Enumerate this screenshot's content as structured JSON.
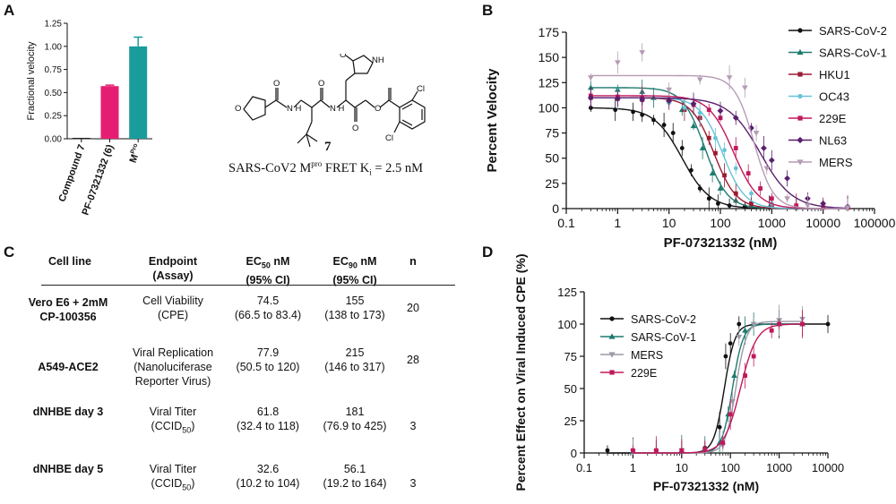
{
  "panels": {
    "a": "A",
    "b": "B",
    "c": "C",
    "d": "D"
  },
  "panelA": {
    "chart_data": {
      "type": "bar",
      "categories": [
        "Compound 7",
        "PF-07321332 (6)",
        "MPro"
      ],
      "category_labels": [
        {
          "main": "Compound 7",
          "sup": ""
        },
        {
          "main": "PF-07321332 (6)",
          "sup": ""
        },
        {
          "main": "M",
          "sup": "Pro"
        }
      ],
      "values": [
        0.01,
        0.57,
        1.0
      ],
      "errors": [
        0.0,
        0.01,
        0.1
      ],
      "colors": [
        "#222222",
        "#e61e73",
        "#1a9c9c"
      ],
      "ylabel": "Fractional velocity",
      "ylim": [
        0,
        1.25
      ],
      "yticks": [
        "0.00",
        "0.25",
        "0.50",
        "0.75",
        "1.00",
        "1.25"
      ]
    }
  },
  "compound": {
    "number": "7",
    "caption_pre": "SARS-CoV2 M",
    "caption_sup": "pro",
    "caption_mid": " FRET K",
    "caption_sub": "i",
    "caption_post": " = 2.5 nM",
    "atoms": {
      "o1": "O",
      "o2": "O",
      "o3": "O",
      "o4": "O",
      "o5": "O",
      "o6": "O",
      "nh1": "NH",
      "nh2": "N\nH",
      "nh3": "N\nH",
      "cl1": "Cl",
      "cl2": "Cl"
    }
  },
  "panelB": {
    "chart_data": {
      "type": "line",
      "xscale": "log",
      "xlabel": "PF-07321332 (nM)",
      "ylabel": "Percent Velocity",
      "xlim": [
        0.1,
        100000
      ],
      "ylim": [
        0,
        175
      ],
      "xticks": [
        "0.1",
        "1",
        "10",
        "100",
        "1000",
        "10000",
        "100000"
      ],
      "yticks": [
        "0",
        "25",
        "50",
        "75",
        "100",
        "125",
        "150",
        "175"
      ],
      "series": [
        {
          "name": "SARS-CoV-2",
          "color": "#111111",
          "marker": "circle",
          "top": 100,
          "ic50": 18,
          "hill": 1.6,
          "x": [
            0.3,
            0.9,
            2,
            3,
            5,
            8,
            12,
            18,
            27,
            40,
            60,
            90,
            150,
            300,
            900,
            3000,
            30000
          ],
          "y": [
            100,
            98,
            96,
            93,
            88,
            83,
            75,
            60,
            38,
            20,
            10,
            5,
            3,
            2,
            1,
            1,
            1
          ]
        },
        {
          "name": "SARS-CoV-1",
          "color": "#1d7a6e",
          "marker": "triangle",
          "top": 120,
          "ic50": 50,
          "hill": 2.0,
          "x": [
            0.3,
            1,
            3,
            5,
            10,
            18,
            30,
            45,
            70,
            100,
            200,
            400,
            1000,
            3000,
            30000
          ],
          "y": [
            120,
            118,
            116,
            110,
            108,
            98,
            82,
            60,
            35,
            20,
            8,
            3,
            2,
            1,
            1
          ]
        },
        {
          "name": "HKU1",
          "color": "#9b1b33",
          "marker": "square",
          "top": 110,
          "ic50": 75,
          "hill": 2.0,
          "x": [
            0.3,
            1,
            3,
            10,
            20,
            40,
            60,
            80,
            120,
            200,
            400,
            1000,
            3000,
            30000
          ],
          "y": [
            110,
            109,
            108,
            106,
            98,
            90,
            70,
            55,
            33,
            15,
            5,
            2,
            1,
            1
          ]
        },
        {
          "name": "OC43",
          "color": "#67c3d8",
          "marker": "circle",
          "top": 110,
          "ic50": 110,
          "hill": 2.0,
          "x": [
            0.3,
            1,
            3,
            10,
            20,
            40,
            80,
            120,
            200,
            400,
            1000,
            3000,
            30000
          ],
          "y": [
            110,
            109,
            108,
            105,
            100,
            95,
            70,
            58,
            40,
            15,
            5,
            2,
            1
          ]
        },
        {
          "name": "229E",
          "color": "#c2185b",
          "marker": "square",
          "top": 112,
          "ic50": 180,
          "hill": 1.8,
          "x": [
            0.3,
            1,
            3,
            10,
            30,
            60,
            100,
            200,
            350,
            600,
            1000,
            3000,
            10000,
            30000
          ],
          "y": [
            112,
            111,
            110,
            108,
            103,
            98,
            90,
            60,
            35,
            20,
            10,
            3,
            1,
            1
          ]
        },
        {
          "name": "NL63",
          "color": "#5a1f6e",
          "marker": "diamond",
          "top": 110,
          "ic50": 600,
          "hill": 1.4,
          "x": [
            0.3,
            1,
            3,
            10,
            30,
            100,
            200,
            400,
            700,
            1000,
            2000,
            5000,
            10000,
            30000
          ],
          "y": [
            110,
            109,
            108,
            107,
            104,
            97,
            90,
            80,
            60,
            48,
            30,
            10,
            5,
            2
          ]
        },
        {
          "name": "MERS",
          "color": "#b59bb5",
          "marker": "triangledown",
          "top": 132,
          "ic50": 450,
          "hill": 2.3,
          "x": [
            0.3,
            1,
            3,
            10,
            40,
            150,
            300,
            500,
            800,
            2000,
            5000,
            30000
          ],
          "y": [
            130,
            145,
            155,
            118,
            128,
            130,
            120,
            75,
            40,
            10,
            3,
            1
          ]
        }
      ]
    }
  },
  "panelC": {
    "headers": {
      "cell_line": "Cell line",
      "endpoint": "Endpoint",
      "assay": "(Assay)",
      "ec50_pre": "EC",
      "ec50_sub": "50",
      "ec50_post": " nM",
      "ec90_pre": "EC",
      "ec90_sub": "90",
      "ec90_post": " nM",
      "ci": "(95% CI)",
      "n": "n"
    },
    "rows": [
      {
        "cell_line": "Vero E6 + 2mM CP-100356",
        "endpoint": "Cell Viability",
        "assay": "(CPE)",
        "assay_sub": "",
        "assay_end": "",
        "ec50": "74.5",
        "ec50_ci": "(66.5 to 83.4)",
        "ec90": "155",
        "ec90_ci": "(138 to 173)",
        "n": "20"
      },
      {
        "cell_line": "A549-ACE2",
        "endpoint": "Viral Replication",
        "assay": "(Nanoluciferase Reporter Virus)",
        "assay_sub": "",
        "assay_end": "",
        "ec50": "77.9",
        "ec50_ci": "(50.5 to 120)",
        "ec90": "215",
        "ec90_ci": "(146 to 317)",
        "n": "28"
      },
      {
        "cell_line": "dNHBE day 3",
        "endpoint": "Viral Titer",
        "assay": "(CCID",
        "assay_sub": "50",
        "assay_end": ")",
        "ec50": "61.8",
        "ec50_ci": "(32.4 to 118)",
        "ec90": "181",
        "ec90_ci": "(76.9 to 425)",
        "n": "3"
      },
      {
        "cell_line": "dNHBE day 5",
        "endpoint": "Viral Titer",
        "assay": "(CCID",
        "assay_sub": "50",
        "assay_end": ")",
        "ec50": "32.6",
        "ec50_ci": "(10.2 to 104)",
        "ec90": "56.1",
        "ec90_ci": "(19.2 to 164)",
        "n": "3"
      }
    ]
  },
  "panelD": {
    "chart_data": {
      "type": "line",
      "xscale": "log",
      "xlabel": "PF-07321332 (nM)",
      "ylabel": "Percent Effect on Viral Induced CPE  (%)",
      "xlim": [
        0.1,
        10000
      ],
      "ylim": [
        0,
        125
      ],
      "xticks": [
        "0.1",
        "1",
        "10",
        "100",
        "1000",
        "10000"
      ],
      "yticks": [
        "0",
        "25",
        "50",
        "75",
        "100",
        "125"
      ],
      "series": [
        {
          "name": "SARS-CoV-2",
          "color": "#111111",
          "marker": "circle",
          "top": 100,
          "ec50": 75,
          "hill": 4.0,
          "x": [
            0.3,
            1,
            3,
            10,
            30,
            60,
            80,
            100,
            150,
            300,
            1000,
            3000,
            10000
          ],
          "y": [
            2,
            1,
            1,
            2,
            4,
            20,
            75,
            85,
            100,
            100,
            100,
            100,
            100
          ]
        },
        {
          "name": "SARS-CoV-1",
          "color": "#1d7a6e",
          "marker": "triangle",
          "top": 100,
          "ec50": 110,
          "hill": 4.0,
          "x": [
            1,
            3,
            10,
            30,
            60,
            90,
            120,
            200,
            300,
            1000,
            3000
          ],
          "y": [
            1,
            1,
            2,
            3,
            8,
            30,
            60,
            95,
            100,
            100,
            100
          ]
        },
        {
          "name": "MERS",
          "color": "#9a9aa8",
          "marker": "triangledown",
          "top": 102,
          "ec50": 130,
          "hill": 4.0,
          "x": [
            1,
            3,
            10,
            30,
            70,
            110,
            150,
            300,
            1000,
            3000
          ],
          "y": [
            1,
            1,
            2,
            2,
            6,
            40,
            90,
            100,
            103,
            104
          ]
        },
        {
          "name": "229E",
          "color": "#c2185b",
          "marker": "square",
          "top": 100,
          "ec50": 160,
          "hill": 2.6,
          "x": [
            1,
            3,
            10,
            30,
            70,
            100,
            200,
            300,
            700,
            1000,
            3000
          ],
          "y": [
            2,
            2,
            2,
            3,
            8,
            30,
            60,
            75,
            95,
            100,
            100
          ]
        }
      ]
    }
  }
}
